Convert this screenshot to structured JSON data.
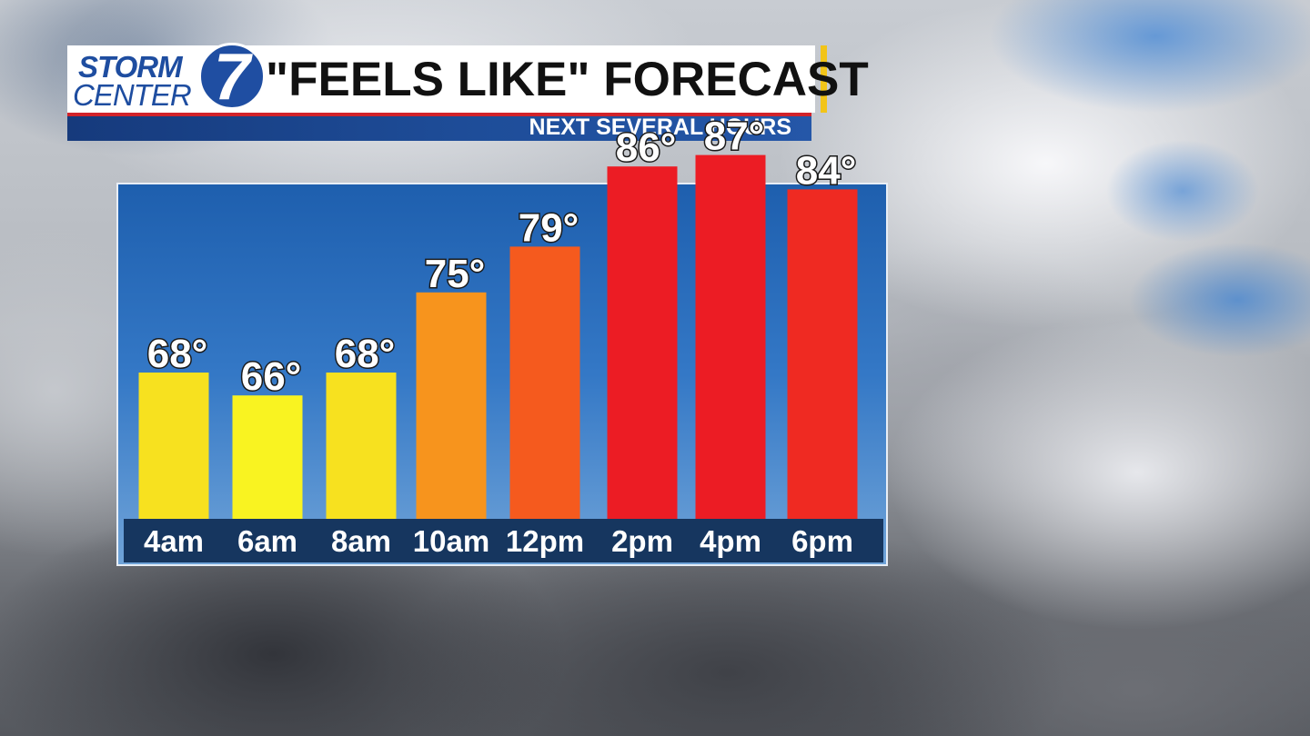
{
  "logo": {
    "line1": "STORM",
    "line2": "CENTER",
    "numeral": "7"
  },
  "header": {
    "title": "\"FEELS LIKE\" FORECAST",
    "subtitle": "NEXT SEVERAL HOURS"
  },
  "colors": {
    "yellow": "#f7e11f",
    "bright_yellow": "#f9f321",
    "orange": "#f7941d",
    "red_orange": "#f55a1e",
    "red": "#ec1c24",
    "panel_blue": "#2a6cbd",
    "strip_navy": "#16365f"
  },
  "chart_data": {
    "type": "bar",
    "categories": [
      "4am",
      "6am",
      "8am",
      "10am",
      "12pm",
      "2pm",
      "4pm",
      "6pm"
    ],
    "values": [
      68,
      66,
      68,
      75,
      79,
      86,
      87,
      84
    ],
    "value_labels": [
      "68°",
      "66°",
      "68°",
      "75°",
      "79°",
      "86°",
      "87°",
      "84°"
    ],
    "bar_colors": [
      "#f7e11f",
      "#f9f321",
      "#f7e11f",
      "#f7941d",
      "#f55a1e",
      "#ec1c24",
      "#ec1c24",
      "#ef2a22"
    ],
    "grid": false
  }
}
